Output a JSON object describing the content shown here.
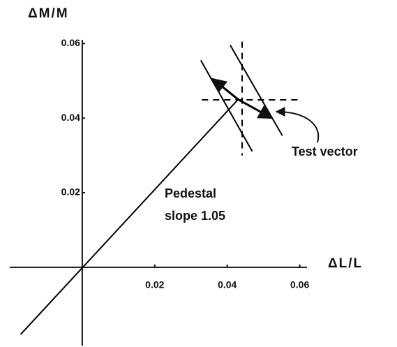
{
  "chart_data": {
    "type": "line",
    "x_label": "ΔL/L",
    "y_label": "ΔM/M",
    "xlim": [
      -0.02,
      0.062
    ],
    "ylim": [
      -0.021,
      0.061
    ],
    "xticks": [
      0.02,
      0.04,
      0.06
    ],
    "yticks": [
      0.02,
      0.04,
      0.06
    ],
    "color": "#000000",
    "series": [
      {
        "x": [
          -0.017,
          0.043
        ],
        "values": [
          -0.018,
          0.045
        ],
        "style": "solid"
      },
      {
        "x": [
          0.0327,
          0.0469
        ],
        "values": [
          0.0555,
          0.0311
        ],
        "style": "solid"
      },
      {
        "x": [
          0.0408,
          0.0552
        ],
        "values": [
          0.0596,
          0.0353
        ],
        "style": "solid"
      },
      {
        "x": [
          0.0441,
          0.0441
        ],
        "values": [
          0.0605,
          0.03
        ],
        "style": "dashed"
      },
      {
        "x": [
          0.033,
          0.06
        ],
        "values": [
          0.0449,
          0.0449
        ],
        "style": "dashed"
      }
    ],
    "arrows": [
      {
        "x": [
          0.043,
          0.036
        ],
        "values": [
          0.045,
          0.0505
        ]
      },
      {
        "x": [
          0.043,
          0.0523
        ],
        "values": [
          0.045,
          0.04
        ]
      }
    ],
    "annotations": [
      "Pedestal",
      "slope 1.05",
      "Test vector"
    ]
  }
}
